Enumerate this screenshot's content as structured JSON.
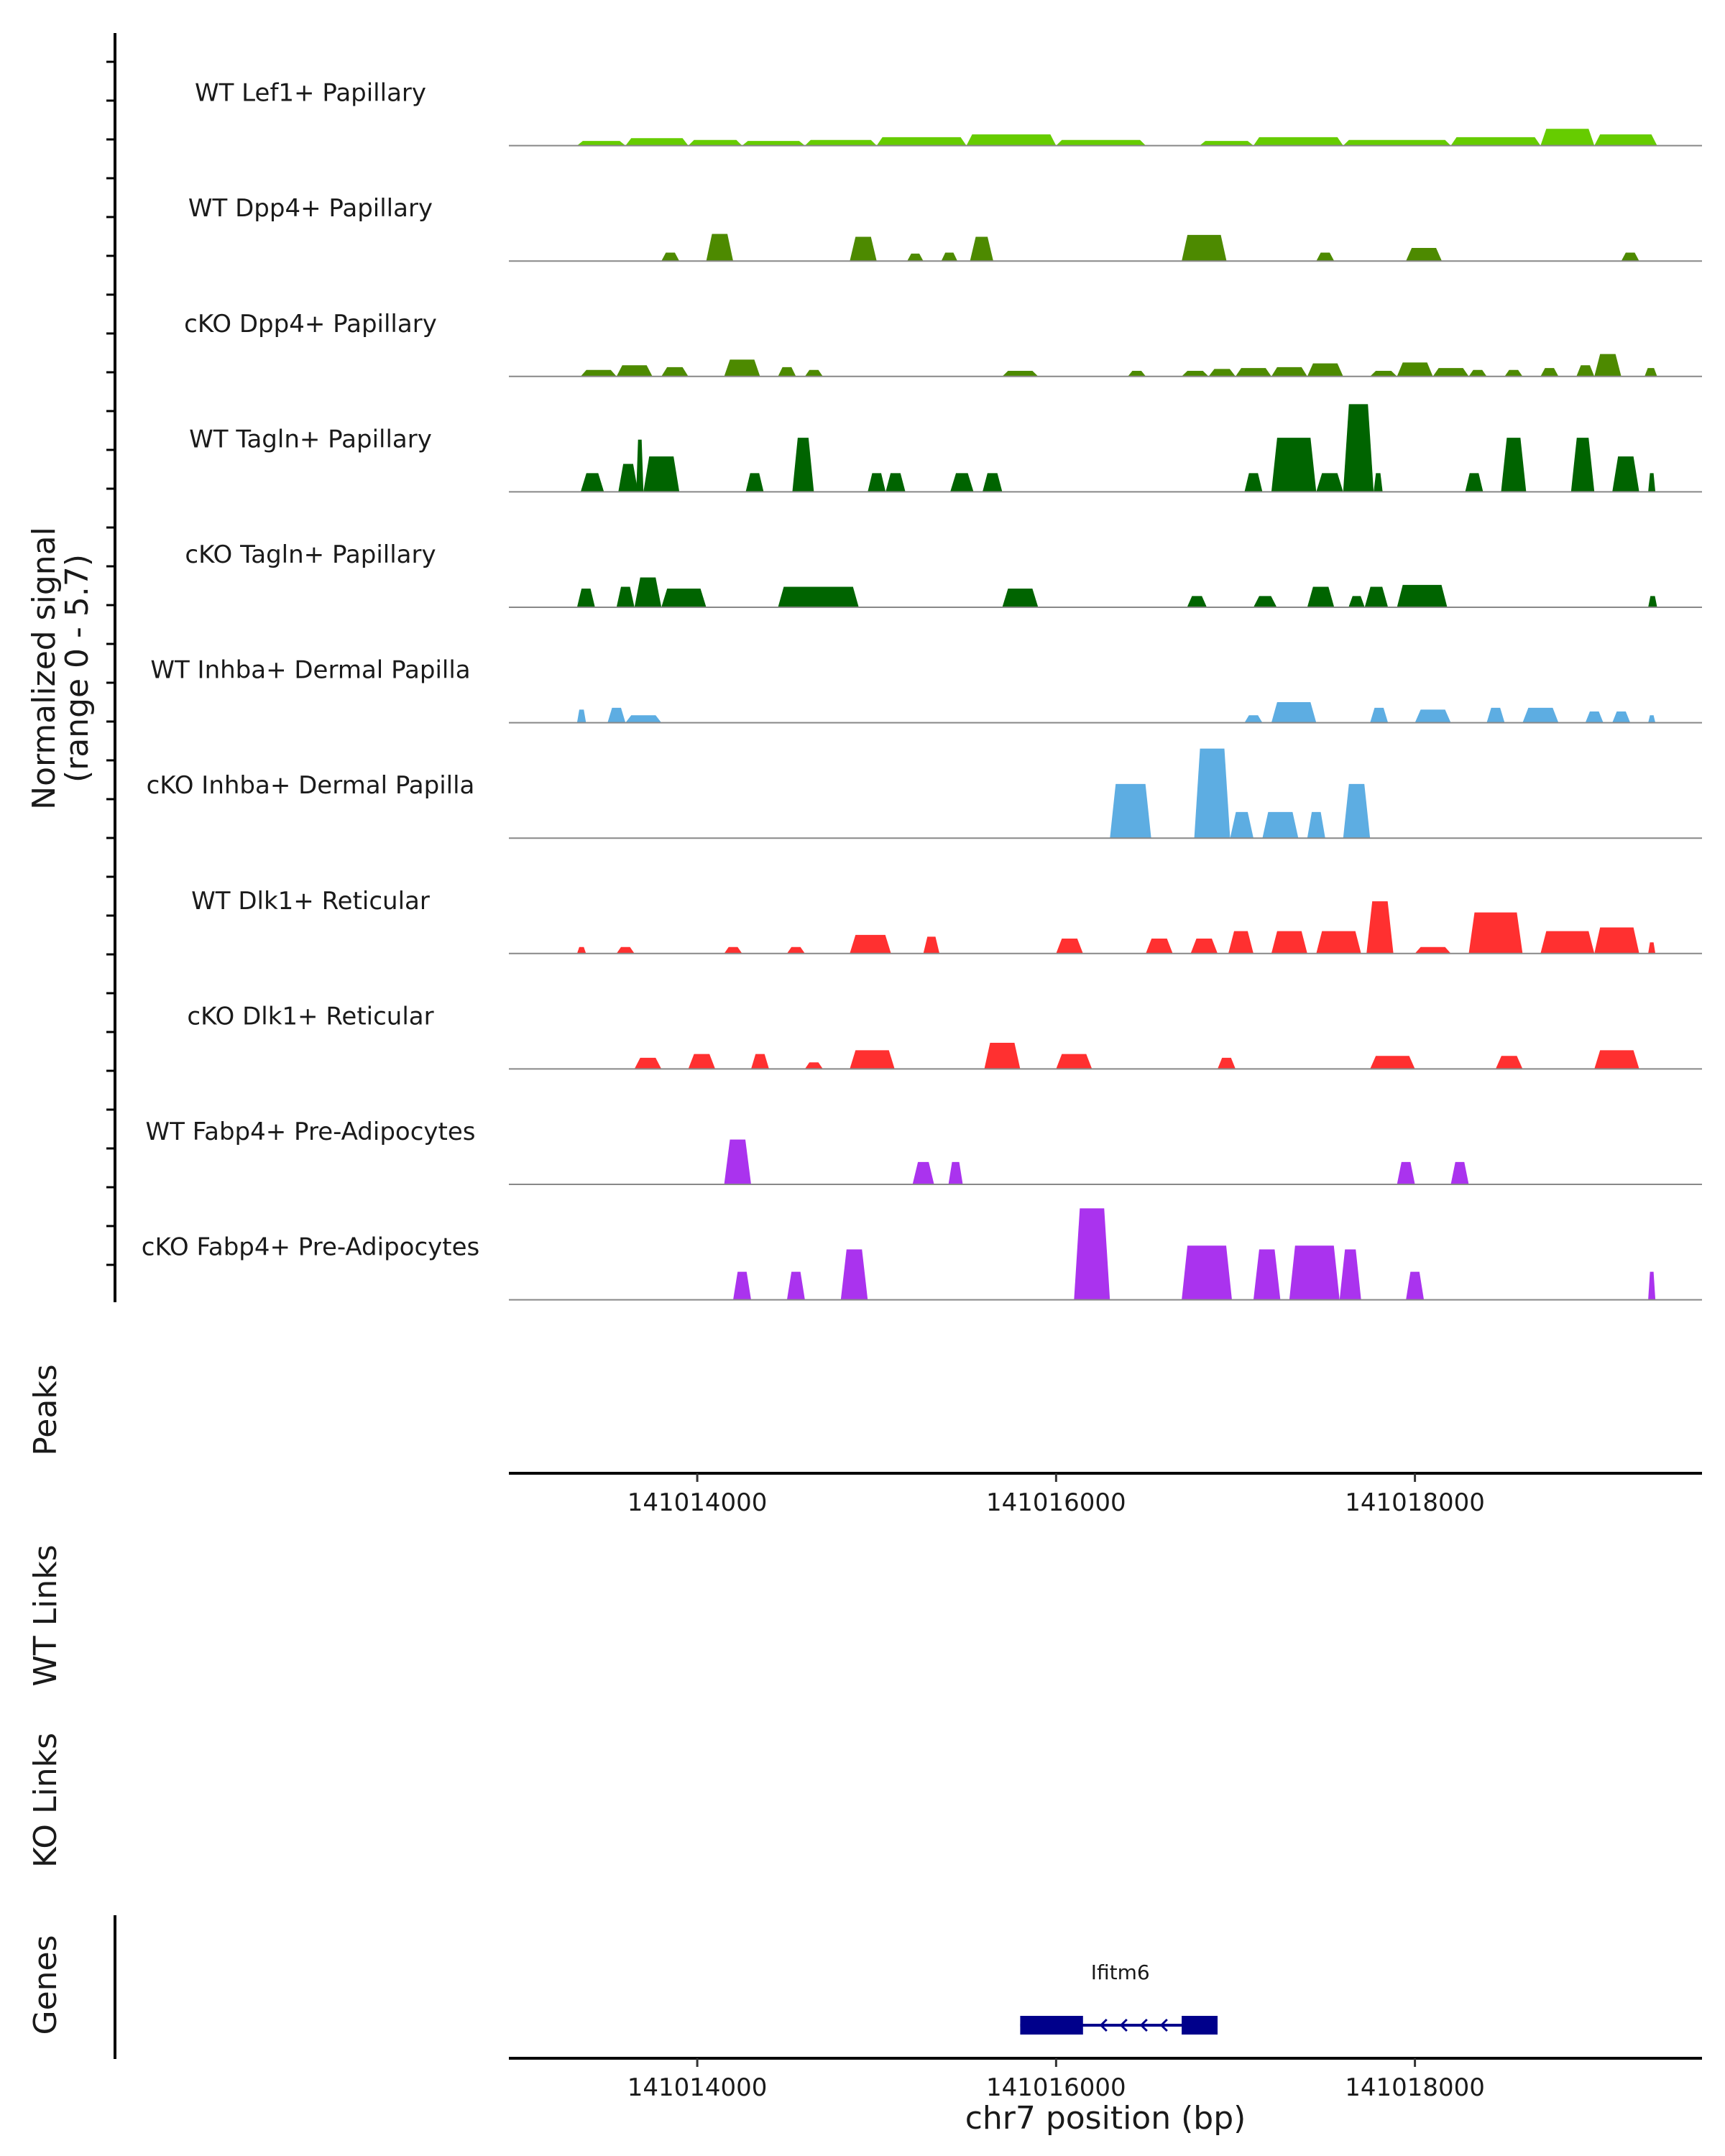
{
  "chart_data": {
    "type": "area",
    "y_axis_label_line1": "Normalized signal",
    "y_axis_label_line2": "(range 0 - 5.7)",
    "ylim": [
      0,
      5.7
    ],
    "xlim": [
      141012950,
      141019600
    ],
    "x_ticks": [
      141014000,
      141016000,
      141018000
    ],
    "x_tick_labels": [
      "141014000",
      "141016000",
      "141018000"
    ],
    "xlabel": "chr7 position (bp)",
    "panel_labels": {
      "peaks": "Peaks",
      "wt_links": "WT Links",
      "ko_links": "KO Links",
      "genes": "Genes"
    },
    "series": [
      {
        "name": "WT Lef1+ Papillary",
        "color": "#66cc00",
        "peaks": [
          [
            141013330,
            141013600,
            0.25
          ],
          [
            141013600,
            141013950,
            0.4
          ],
          [
            141013950,
            141014250,
            0.3
          ],
          [
            141014250,
            141014600,
            0.25
          ],
          [
            141014600,
            141015000,
            0.3
          ],
          [
            141015000,
            141015500,
            0.45
          ],
          [
            141015500,
            141016000,
            0.6
          ],
          [
            141016000,
            141016500,
            0.3
          ],
          [
            141016800,
            141017100,
            0.25
          ],
          [
            141017100,
            141017600,
            0.45
          ],
          [
            141017600,
            141018200,
            0.3
          ],
          [
            141018200,
            141018700,
            0.45
          ],
          [
            141018700,
            141019000,
            0.9
          ],
          [
            141019000,
            141019350,
            0.6
          ]
        ]
      },
      {
        "name": "WT Dpp4+ Papillary",
        "color": "#4d8a00",
        "peaks": [
          [
            141013800,
            141013900,
            0.45
          ],
          [
            141014050,
            141014200,
            1.45
          ],
          [
            141014850,
            141015000,
            1.3
          ],
          [
            141015170,
            141015260,
            0.4
          ],
          [
            141015360,
            141015450,
            0.45
          ],
          [
            141015520,
            141015650,
            1.3
          ],
          [
            141016700,
            141016950,
            1.4
          ],
          [
            141017450,
            141017550,
            0.45
          ],
          [
            141017950,
            141018150,
            0.7
          ],
          [
            141019150,
            141019250,
            0.45
          ]
        ]
      },
      {
        "name": "cKO Dpp4+ Papillary",
        "color": "#4d8a00",
        "peaks": [
          [
            141013350,
            141013550,
            0.35
          ],
          [
            141013550,
            141013750,
            0.6
          ],
          [
            141013800,
            141013950,
            0.5
          ],
          [
            141014150,
            141014350,
            0.9
          ],
          [
            141014450,
            141014550,
            0.5
          ],
          [
            141014600,
            141014700,
            0.35
          ],
          [
            141015700,
            141015900,
            0.3
          ],
          [
            141016400,
            141016500,
            0.3
          ],
          [
            141016700,
            141016850,
            0.3
          ],
          [
            141016850,
            141017000,
            0.4
          ],
          [
            141017000,
            141017200,
            0.45
          ],
          [
            141017200,
            141017400,
            0.5
          ],
          [
            141017400,
            141017600,
            0.7
          ],
          [
            141017750,
            141017900,
            0.3
          ],
          [
            141017900,
            141018100,
            0.75
          ],
          [
            141018100,
            141018300,
            0.45
          ],
          [
            141018300,
            141018400,
            0.35
          ],
          [
            141018500,
            141018600,
            0.35
          ],
          [
            141018700,
            141018800,
            0.45
          ],
          [
            141018900,
            141019000,
            0.6
          ],
          [
            141019000,
            141019150,
            1.2
          ],
          [
            141019280,
            141019350,
            0.45
          ]
        ]
      },
      {
        "name": "WT Tagln+ Papillary",
        "color": "#006400",
        "peaks": [
          [
            141013350,
            141013480,
            1.0
          ],
          [
            141013560,
            141013670,
            1.5
          ],
          [
            141013660,
            141013700,
            2.8
          ],
          [
            141013700,
            141013900,
            1.9
          ],
          [
            141014270,
            141014370,
            1.0
          ],
          [
            141014530,
            141014650,
            2.9
          ],
          [
            141014950,
            141015050,
            1.0
          ],
          [
            141015050,
            141015160,
            1.0
          ],
          [
            141015410,
            141015540,
            1.0
          ],
          [
            141015590,
            141015700,
            1.0
          ],
          [
            141017050,
            141017150,
            1.0
          ],
          [
            141017200,
            141017450,
            2.9
          ],
          [
            141017450,
            141017600,
            1.0
          ],
          [
            141017600,
            141017770,
            4.7
          ],
          [
            141017770,
            141017820,
            1.0
          ],
          [
            141018280,
            141018380,
            1.0
          ],
          [
            141018480,
            141018620,
            2.9
          ],
          [
            141018870,
            141019000,
            2.9
          ],
          [
            141019100,
            141019250,
            1.9
          ],
          [
            141019300,
            141019340,
            1.0
          ]
        ]
      },
      {
        "name": "cKO Tagln+ Papillary",
        "color": "#006400",
        "peaks": [
          [
            141013330,
            141013430,
            1.0
          ],
          [
            141013550,
            141013650,
            1.1
          ],
          [
            141013650,
            141013800,
            1.6
          ],
          [
            141013800,
            141014050,
            1.0
          ],
          [
            141014450,
            141014900,
            1.1
          ],
          [
            141015700,
            141015900,
            1.0
          ],
          [
            141016730,
            141016840,
            0.6
          ],
          [
            141017100,
            141017230,
            0.6
          ],
          [
            141017400,
            141017550,
            1.1
          ],
          [
            141017630,
            141017720,
            0.6
          ],
          [
            141017720,
            141017850,
            1.1
          ],
          [
            141017900,
            141018180,
            1.2
          ],
          [
            141019300,
            141019350,
            0.6
          ]
        ]
      },
      {
        "name": "WT Inhba+ Dermal Papilla",
        "color": "#5dade2",
        "peaks": [
          [
            141013330,
            141013380,
            0.7
          ],
          [
            141013500,
            141013600,
            0.8
          ],
          [
            141013600,
            141013800,
            0.4
          ],
          [
            141017050,
            141017150,
            0.4
          ],
          [
            141017200,
            141017450,
            1.1
          ],
          [
            141017750,
            141017850,
            0.8
          ],
          [
            141018000,
            141018200,
            0.7
          ],
          [
            141018400,
            141018500,
            0.8
          ],
          [
            141018600,
            141018800,
            0.8
          ],
          [
            141018950,
            141019050,
            0.6
          ],
          [
            141019100,
            141019200,
            0.6
          ],
          [
            141019300,
            141019340,
            0.4
          ]
        ]
      },
      {
        "name": "cKO Inhba+ Dermal Papilla",
        "color": "#5dade2",
        "peaks": [
          [
            141016300,
            141016530,
            2.9
          ],
          [
            141016770,
            141016970,
            4.8
          ],
          [
            141016970,
            141017100,
            1.4
          ],
          [
            141017150,
            141017350,
            1.4
          ],
          [
            141017400,
            141017500,
            1.4
          ],
          [
            141017600,
            141017750,
            2.9
          ]
        ]
      },
      {
        "name": "WT Dlk1+ Reticular",
        "color": "#ff3030",
        "peaks": [
          [
            141013330,
            141013380,
            0.35
          ],
          [
            141013550,
            141013650,
            0.35
          ],
          [
            141014150,
            141014250,
            0.35
          ],
          [
            141014500,
            141014600,
            0.35
          ],
          [
            141014850,
            141015080,
            1.0
          ],
          [
            141015260,
            141015350,
            0.9
          ],
          [
            141016000,
            141016150,
            0.8
          ],
          [
            141016500,
            141016650,
            0.8
          ],
          [
            141016750,
            141016900,
            0.8
          ],
          [
            141016960,
            141017100,
            1.2
          ],
          [
            141017200,
            141017400,
            1.2
          ],
          [
            141017450,
            141017700,
            1.2
          ],
          [
            141017730,
            141017880,
            2.8
          ],
          [
            141018000,
            141018200,
            0.35
          ],
          [
            141018300,
            141018600,
            2.2
          ],
          [
            141018700,
            141019000,
            1.2
          ],
          [
            141019000,
            141019250,
            1.4
          ],
          [
            141019300,
            141019340,
            0.6
          ]
        ]
      },
      {
        "name": "cKO Dlk1+ Reticular",
        "color": "#ff3030",
        "peaks": [
          [
            141013650,
            141013800,
            0.6
          ],
          [
            141013950,
            141014100,
            0.8
          ],
          [
            141014300,
            141014400,
            0.8
          ],
          [
            141014600,
            141014700,
            0.35
          ],
          [
            141014850,
            141015100,
            1.0
          ],
          [
            141015600,
            141015800,
            1.4
          ],
          [
            141016000,
            141016200,
            0.8
          ],
          [
            141016900,
            141017000,
            0.6
          ],
          [
            141017750,
            141018000,
            0.7
          ],
          [
            141018450,
            141018600,
            0.7
          ],
          [
            141019000,
            141019250,
            1.0
          ]
        ]
      },
      {
        "name": "WT Fabp4+ Pre-Adipocytes",
        "color": "#aa33ee",
        "peaks": [
          [
            141014150,
            141014300,
            2.4
          ],
          [
            141015200,
            141015320,
            1.2
          ],
          [
            141015400,
            141015480,
            1.2
          ],
          [
            141017900,
            141018000,
            1.2
          ],
          [
            141018200,
            141018300,
            1.2
          ]
        ]
      },
      {
        "name": "cKO Fabp4+ Pre-Adipocytes",
        "color": "#aa33ee",
        "peaks": [
          [
            141014200,
            141014300,
            1.5
          ],
          [
            141014500,
            141014600,
            1.5
          ],
          [
            141014800,
            141014950,
            2.7
          ],
          [
            141016100,
            141016300,
            4.9
          ],
          [
            141016700,
            141016980,
            2.9
          ],
          [
            141017100,
            141017250,
            2.7
          ],
          [
            141017300,
            141017580,
            2.9
          ],
          [
            141017580,
            141017700,
            2.7
          ],
          [
            141017950,
            141018050,
            1.5
          ],
          [
            141019300,
            141019340,
            1.5
          ]
        ]
      }
    ],
    "genes": [
      {
        "name": "Ifitm6",
        "start": 141015800,
        "end": 141016900,
        "strand": "-",
        "exons": [
          [
            141015800,
            141016150
          ],
          [
            141016700,
            141016900
          ]
        ],
        "color": "#00008b"
      }
    ]
  }
}
